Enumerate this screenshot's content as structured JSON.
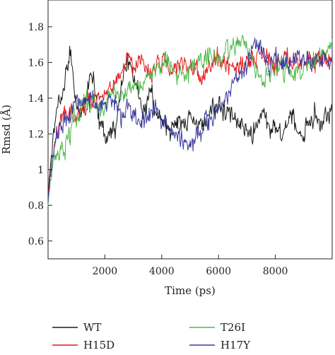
{
  "chart_data": {
    "type": "line",
    "title": "",
    "xlabel": "Time (ps)",
    "ylabel": "Rmsd (Å)",
    "xlim": [
      0,
      10000
    ],
    "ylim": [
      0.5,
      1.95
    ],
    "xticks": [
      2000,
      4000,
      6000,
      8000
    ],
    "xtick_labels": [
      "2000",
      "4000",
      "6000",
      "8000"
    ],
    "yticks": [
      0.6,
      0.8,
      1.0,
      1.2,
      1.4,
      1.6,
      1.8
    ],
    "ytick_labels": [
      "0.6",
      "0.8",
      "1",
      "1.2",
      "1.4",
      "1.6",
      "1.8"
    ],
    "grid": false,
    "legend_position": "bottom",
    "x_step_ps": 20,
    "series": [
      {
        "name": "WT",
        "color": "#1a1a1a",
        "x": [
          0,
          100,
          200,
          300,
          400,
          500,
          600,
          700,
          800,
          900,
          1000,
          1200,
          1400,
          1600,
          1800,
          2000,
          2200,
          2400,
          2600,
          2800,
          3000,
          3200,
          3400,
          3600,
          3800,
          4000,
          4200,
          4400,
          4600,
          4800,
          5000,
          5200,
          5400,
          5600,
          5800,
          6000,
          6200,
          6400,
          6600,
          6800,
          7000,
          7200,
          7400,
          7600,
          7800,
          8000,
          8200,
          8400,
          8600,
          8800,
          9000,
          9200,
          9400,
          9600,
          9800,
          10000
        ],
        "y": [
          0.85,
          1.05,
          1.2,
          1.3,
          1.4,
          1.42,
          1.55,
          1.6,
          1.68,
          1.5,
          1.35,
          1.3,
          1.45,
          1.48,
          1.28,
          1.22,
          1.2,
          1.25,
          1.5,
          1.62,
          1.55,
          1.4,
          1.3,
          1.45,
          1.3,
          1.25,
          1.22,
          1.25,
          1.3,
          1.25,
          1.32,
          1.28,
          1.25,
          1.3,
          1.36,
          1.35,
          1.3,
          1.32,
          1.28,
          1.25,
          1.2,
          1.18,
          1.28,
          1.3,
          1.22,
          1.25,
          1.2,
          1.25,
          1.3,
          1.22,
          1.2,
          1.28,
          1.32,
          1.25,
          1.28,
          1.3
        ]
      },
      {
        "name": "H15D",
        "color": "#e31a1c",
        "x": [
          0,
          100,
          200,
          300,
          400,
          500,
          600,
          700,
          800,
          900,
          1000,
          1200,
          1400,
          1600,
          1800,
          2000,
          2200,
          2400,
          2600,
          2800,
          3000,
          3200,
          3400,
          3600,
          3800,
          4000,
          4200,
          4400,
          4600,
          4800,
          5000,
          5200,
          5400,
          5600,
          5800,
          6000,
          6200,
          6400,
          6600,
          6800,
          7000,
          7200,
          7400,
          7600,
          7800,
          8000,
          8200,
          8400,
          8600,
          8800,
          9000,
          9200,
          9400,
          9600,
          9800,
          10000
        ],
        "y": [
          0.85,
          1.0,
          1.1,
          1.2,
          1.25,
          1.3,
          1.28,
          1.3,
          1.35,
          1.32,
          1.3,
          1.35,
          1.42,
          1.38,
          1.4,
          1.42,
          1.45,
          1.48,
          1.55,
          1.6,
          1.55,
          1.58,
          1.6,
          1.55,
          1.58,
          1.6,
          1.55,
          1.52,
          1.55,
          1.58,
          1.6,
          1.55,
          1.5,
          1.55,
          1.58,
          1.6,
          1.62,
          1.58,
          1.6,
          1.58,
          1.62,
          1.6,
          1.65,
          1.68,
          1.6,
          1.55,
          1.58,
          1.62,
          1.6,
          1.58,
          1.6,
          1.62,
          1.6,
          1.65,
          1.62,
          1.6
        ]
      },
      {
        "name": "T26I",
        "color": "#4db848",
        "x": [
          0,
          100,
          200,
          300,
          400,
          500,
          600,
          700,
          800,
          900,
          1000,
          1200,
          1400,
          1600,
          1800,
          2000,
          2200,
          2400,
          2600,
          2800,
          3000,
          3200,
          3400,
          3600,
          3800,
          4000,
          4200,
          4400,
          4600,
          4800,
          5000,
          5200,
          5400,
          5600,
          5800,
          6000,
          6200,
          6400,
          6600,
          6800,
          7000,
          7200,
          7400,
          7600,
          7800,
          8000,
          8200,
          8400,
          8600,
          8800,
          9000,
          9200,
          9400,
          9600,
          9800,
          10000
        ],
        "y": [
          0.8,
          0.95,
          1.05,
          1.1,
          1.12,
          1.15,
          1.12,
          1.18,
          1.2,
          1.28,
          1.32,
          1.35,
          1.4,
          1.38,
          1.32,
          1.38,
          1.42,
          1.45,
          1.4,
          1.42,
          1.48,
          1.45,
          1.5,
          1.52,
          1.55,
          1.58,
          1.6,
          1.55,
          1.52,
          1.5,
          1.55,
          1.58,
          1.6,
          1.65,
          1.62,
          1.6,
          1.65,
          1.68,
          1.7,
          1.72,
          1.68,
          1.62,
          1.55,
          1.5,
          1.52,
          1.55,
          1.58,
          1.55,
          1.5,
          1.55,
          1.58,
          1.6,
          1.62,
          1.65,
          1.68,
          1.7
        ]
      },
      {
        "name": "H17Y",
        "color": "#3b3b9e",
        "x": [
          0,
          100,
          200,
          300,
          400,
          500,
          600,
          700,
          800,
          900,
          1000,
          1200,
          1400,
          1600,
          1800,
          2000,
          2200,
          2400,
          2600,
          2800,
          3000,
          3200,
          3400,
          3600,
          3800,
          4000,
          4200,
          4400,
          4600,
          4800,
          5000,
          5200,
          5400,
          5600,
          5800,
          6000,
          6200,
          6400,
          6600,
          6800,
          7000,
          7200,
          7400,
          7600,
          7800,
          8000,
          8200,
          8400,
          8600,
          8800,
          9000,
          9200,
          9400,
          9600,
          9800,
          10000
        ],
        "y": [
          0.82,
          1.0,
          1.1,
          1.18,
          1.22,
          1.25,
          1.28,
          1.3,
          1.32,
          1.35,
          1.38,
          1.4,
          1.42,
          1.38,
          1.35,
          1.4,
          1.38,
          1.35,
          1.3,
          1.35,
          1.32,
          1.28,
          1.25,
          1.3,
          1.35,
          1.3,
          1.25,
          1.2,
          1.18,
          1.15,
          1.12,
          1.18,
          1.2,
          1.28,
          1.3,
          1.35,
          1.4,
          1.45,
          1.5,
          1.55,
          1.6,
          1.68,
          1.7,
          1.65,
          1.6,
          1.62,
          1.58,
          1.6,
          1.62,
          1.65,
          1.6,
          1.62,
          1.65,
          1.6,
          1.62,
          1.6
        ]
      }
    ]
  }
}
